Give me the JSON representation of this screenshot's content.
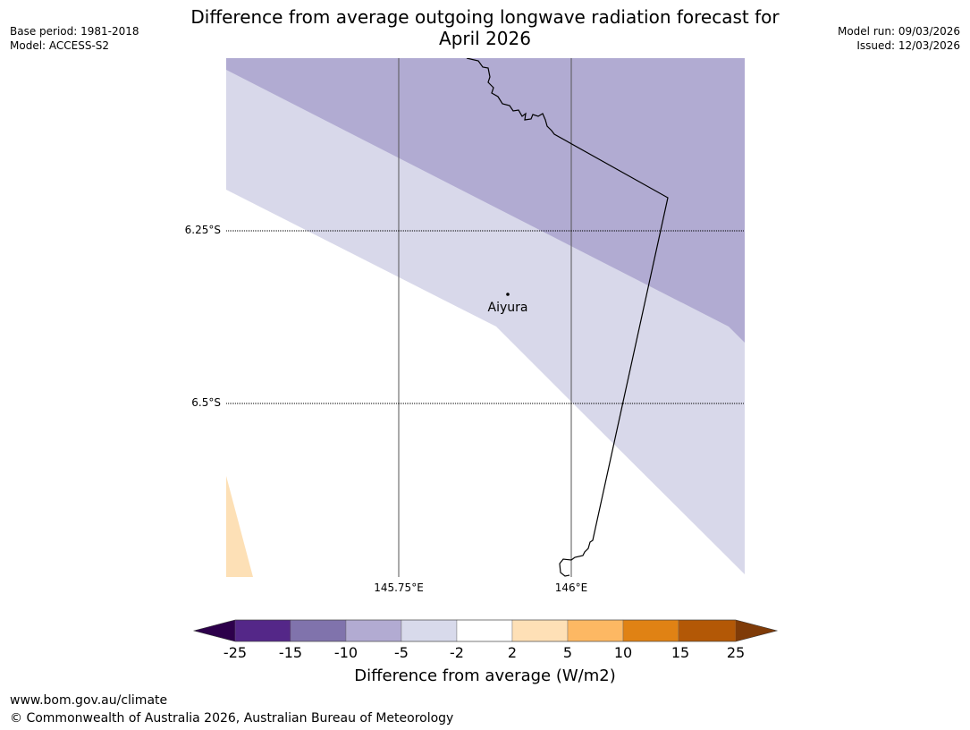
{
  "header": {
    "base_period": "Base period: 1981-2018",
    "model": "Model: ACCESS-S2",
    "model_run": "Model run: 09/03/2026",
    "issued": "Issued: 12/03/2026"
  },
  "title": {
    "line1": "Difference from average outgoing longwave radiation forecast for",
    "line2": "April 2026"
  },
  "map": {
    "lat_labels": [
      "6.25°S",
      "6.5°S"
    ],
    "lon_labels": [
      "145.75°E",
      "146°E"
    ],
    "place": {
      "name": "Aiyura"
    },
    "colors": {
      "band_minus10_to_minus5": "#b1abd2",
      "band_minus5_to_minus2": "#d8d8ea",
      "band_2_to_5": "#fde0b6",
      "boundary": "#000000",
      "gridline": "#555555"
    }
  },
  "colorbar": {
    "ticks": [
      "-25",
      "-15",
      "-10",
      "-5",
      "-2",
      "2",
      "5",
      "10",
      "15",
      "25"
    ],
    "colors": [
      "#2d004b",
      "#542788",
      "#8073ac",
      "#b2abd2",
      "#d8daeb",
      "#ffffff",
      "#fee0b6",
      "#fdb863",
      "#e08214",
      "#b35806",
      "#7f3b08"
    ],
    "label": "Difference from average (W/m2)"
  },
  "footer": {
    "url": "www.bom.gov.au/climate",
    "copyright": "© Commonwealth of Australia 2026, Australian Bureau of Meteorology"
  }
}
